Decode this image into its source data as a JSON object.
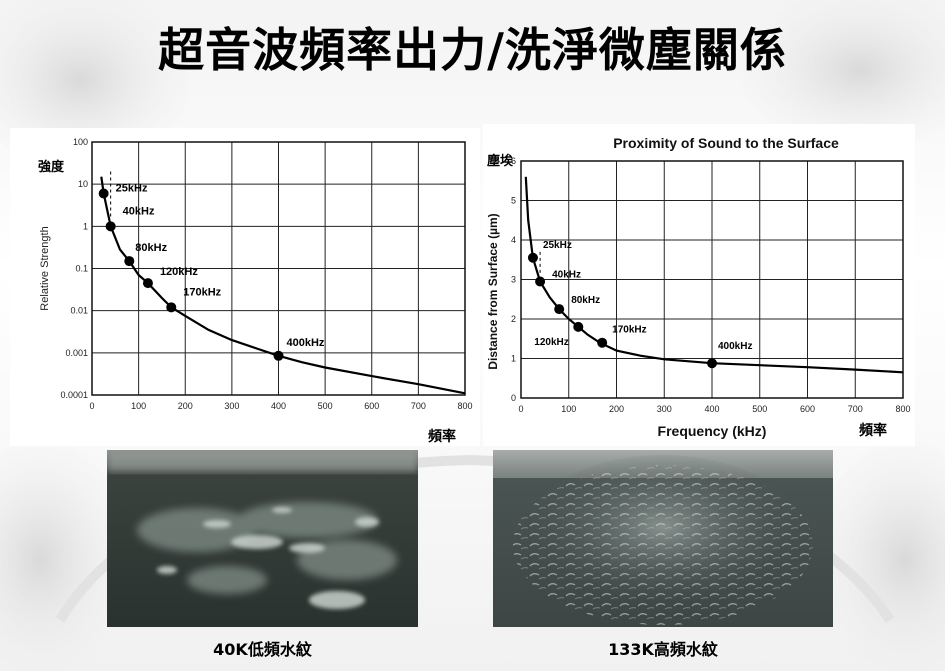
{
  "slide": {
    "title": "超音波頻率出力/洗淨微塵關係"
  },
  "chart_data": [
    {
      "type": "line",
      "title": "",
      "xlabel": "",
      "ylabel": "Relative Strength",
      "ylabel_cjk": "強度",
      "xlabel_cjk": "頻率",
      "yscale": "log",
      "xlim": [
        0,
        800
      ],
      "ylim": [
        0.0001,
        100
      ],
      "x_ticks": [
        0,
        100,
        200,
        300,
        400,
        500,
        600,
        700,
        800
      ],
      "y_ticks": [
        0.0001,
        0.001,
        0.01,
        0.1,
        1,
        10,
        100
      ],
      "y_tick_labels": [
        "0.0001",
        "0.001",
        "0.01",
        "0.1",
        "1",
        "10",
        "100"
      ],
      "grid": true,
      "curve": {
        "x": [
          20,
          25,
          40,
          60,
          80,
          100,
          120,
          150,
          170,
          200,
          250,
          300,
          350,
          400,
          450,
          500,
          600,
          700,
          800
        ],
        "y": [
          15,
          6,
          1,
          0.28,
          0.15,
          0.07,
          0.045,
          0.02,
          0.012,
          0.0075,
          0.0035,
          0.002,
          0.0013,
          0.00085,
          0.0006,
          0.00045,
          0.00028,
          0.00018,
          0.00011
        ]
      },
      "points": [
        {
          "label": "25kHz",
          "x": 25,
          "y": 6
        },
        {
          "label": "40kHz",
          "x": 40,
          "y": 1
        },
        {
          "label": "80kHz",
          "x": 80,
          "y": 0.15
        },
        {
          "label": "120kHz",
          "x": 120,
          "y": 0.045
        },
        {
          "label": "170kHz",
          "x": 170,
          "y": 0.012
        },
        {
          "label": "400kHz",
          "x": 400,
          "y": 0.00085
        }
      ]
    },
    {
      "type": "line",
      "title": "Proximity of Sound to the Surface",
      "xlabel": "Frequency (kHz)",
      "ylabel": "Distance from Surface (µm)",
      "ylabel_cjk": "塵埃",
      "xlabel_cjk": "頻率",
      "xlim": [
        0,
        800
      ],
      "ylim": [
        0,
        6
      ],
      "x_ticks": [
        0,
        100,
        200,
        300,
        400,
        500,
        600,
        700,
        800
      ],
      "y_ticks": [
        0,
        1,
        2,
        3,
        4,
        5,
        6
      ],
      "grid": true,
      "curve": {
        "x": [
          10,
          15,
          25,
          40,
          60,
          80,
          100,
          120,
          140,
          165,
          200,
          250,
          300,
          400,
          500,
          600,
          700,
          800
        ],
        "y": [
          5.6,
          4.5,
          3.55,
          2.95,
          2.55,
          2.25,
          2.0,
          1.8,
          1.6,
          1.4,
          1.2,
          1.07,
          0.98,
          0.88,
          0.83,
          0.78,
          0.72,
          0.65
        ]
      },
      "points": [
        {
          "label": "25kHz",
          "x": 25,
          "y": 3.55
        },
        {
          "label": "40kHz",
          "x": 40,
          "y": 2.95
        },
        {
          "label": "80kHz",
          "x": 80,
          "y": 2.25
        },
        {
          "label": "120kHz",
          "x": 120,
          "y": 1.8
        },
        {
          "label": "170kHz",
          "x": 170,
          "y": 1.4
        },
        {
          "label": "400kHz",
          "x": 400,
          "y": 0.88
        }
      ]
    }
  ],
  "photos": [
    {
      "caption": "40K低頻水紋"
    },
    {
      "caption": "133K高頻水紋"
    }
  ]
}
